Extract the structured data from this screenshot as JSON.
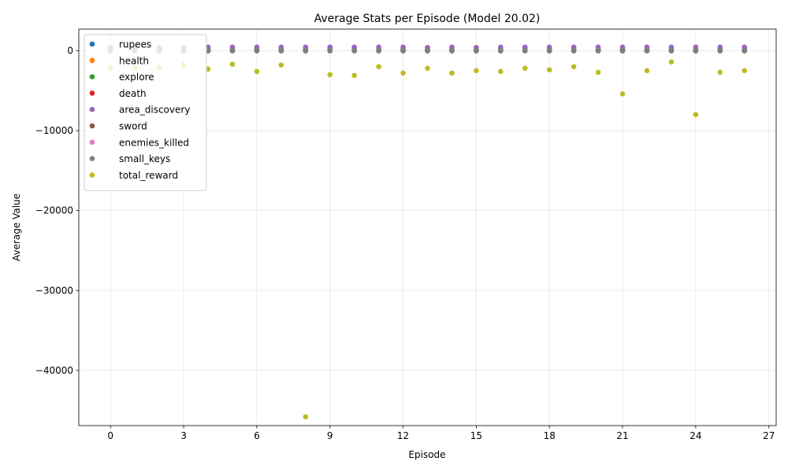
{
  "chart_data": {
    "type": "scatter",
    "title": "Average Stats per Episode (Model 20.02)",
    "xlabel": "Episode",
    "ylabel": "Average Value",
    "xlim": [
      -1.3,
      27.3
    ],
    "ylim": [
      -46900,
      2700
    ],
    "xticks": [
      0,
      3,
      6,
      9,
      12,
      15,
      18,
      21,
      24,
      27
    ],
    "xtick_labels": [
      "0",
      "3",
      "6",
      "9",
      "12",
      "15",
      "18",
      "21",
      "24",
      "27"
    ],
    "yticks": [
      0,
      -10000,
      -20000,
      -30000,
      -40000
    ],
    "ytick_labels": [
      "0",
      "−10000",
      "−20000",
      "−30000",
      "−40000"
    ],
    "grid": true,
    "legend_position": "top-left",
    "x": [
      0,
      1,
      2,
      3,
      4,
      5,
      6,
      7,
      8,
      9,
      10,
      11,
      12,
      13,
      14,
      15,
      16,
      17,
      18,
      19,
      20,
      21,
      22,
      23,
      24,
      25,
      26
    ],
    "series": [
      {
        "name": "rupees",
        "color": "#1f77b4",
        "values": [
          200,
          200,
          200,
          200,
          200,
          200,
          200,
          200,
          200,
          200,
          200,
          200,
          200,
          200,
          200,
          200,
          200,
          200,
          200,
          200,
          200,
          200,
          200,
          200,
          200,
          200,
          200
        ]
      },
      {
        "name": "health",
        "color": "#ff7f0e",
        "values": [
          -20,
          -20,
          -20,
          -20,
          -20,
          -20,
          -20,
          -20,
          -20,
          -20,
          -20,
          -20,
          -20,
          -20,
          -20,
          -20,
          -20,
          -20,
          -20,
          -20,
          -20,
          -20,
          -20,
          -20,
          -20,
          -20,
          -20
        ]
      },
      {
        "name": "explore",
        "color": "#2ca02c",
        "values": [
          30,
          30,
          30,
          30,
          30,
          30,
          30,
          30,
          30,
          30,
          30,
          30,
          30,
          30,
          30,
          30,
          30,
          30,
          30,
          30,
          30,
          30,
          30,
          30,
          30,
          30,
          30
        ]
      },
      {
        "name": "death",
        "color": "#d62728",
        "values": [
          -10,
          -10,
          -10,
          -10,
          -10,
          -10,
          -10,
          -10,
          -10,
          -10,
          -10,
          -10,
          -10,
          -10,
          -10,
          -10,
          -10,
          -10,
          -10,
          -10,
          -10,
          -10,
          -10,
          -10,
          -10,
          -10,
          -10
        ]
      },
      {
        "name": "area_discovery",
        "color": "#9467bd",
        "values": [
          400,
          400,
          400,
          400,
          450,
          450,
          450,
          450,
          450,
          450,
          450,
          450,
          450,
          400,
          450,
          400,
          450,
          450,
          450,
          450,
          450,
          450,
          450,
          450,
          450,
          450,
          450
        ]
      },
      {
        "name": "sword",
        "color": "#8c564b",
        "values": [
          0,
          0,
          0,
          0,
          0,
          0,
          0,
          0,
          0,
          0,
          0,
          0,
          0,
          0,
          0,
          0,
          0,
          0,
          0,
          0,
          0,
          0,
          0,
          0,
          0,
          0,
          0
        ]
      },
      {
        "name": "enemies_killed",
        "color": "#e377c2",
        "values": [
          10,
          10,
          10,
          10,
          10,
          10,
          10,
          10,
          10,
          10,
          10,
          10,
          10,
          10,
          10,
          10,
          10,
          10,
          10,
          10,
          10,
          10,
          10,
          10,
          10,
          10,
          10
        ]
      },
      {
        "name": "small_keys",
        "color": "#7f7f7f",
        "values": [
          0,
          0,
          0,
          0,
          0,
          0,
          0,
          0,
          0,
          0,
          0,
          0,
          0,
          0,
          0,
          0,
          0,
          0,
          0,
          0,
          0,
          0,
          0,
          0,
          0,
          0,
          0
        ]
      },
      {
        "name": "total_reward",
        "color": "#bcbd22",
        "values": [
          -2200,
          -2100,
          -2100,
          -1800,
          -2300,
          -1700,
          -2600,
          -1800,
          -45800,
          -3000,
          -3100,
          -2000,
          -2800,
          -2200,
          -2800,
          -2500,
          -2600,
          -2200,
          -2400,
          -2000,
          -2700,
          -5400,
          -2500,
          -1400,
          -8000,
          -2700,
          -2500
        ]
      }
    ]
  }
}
